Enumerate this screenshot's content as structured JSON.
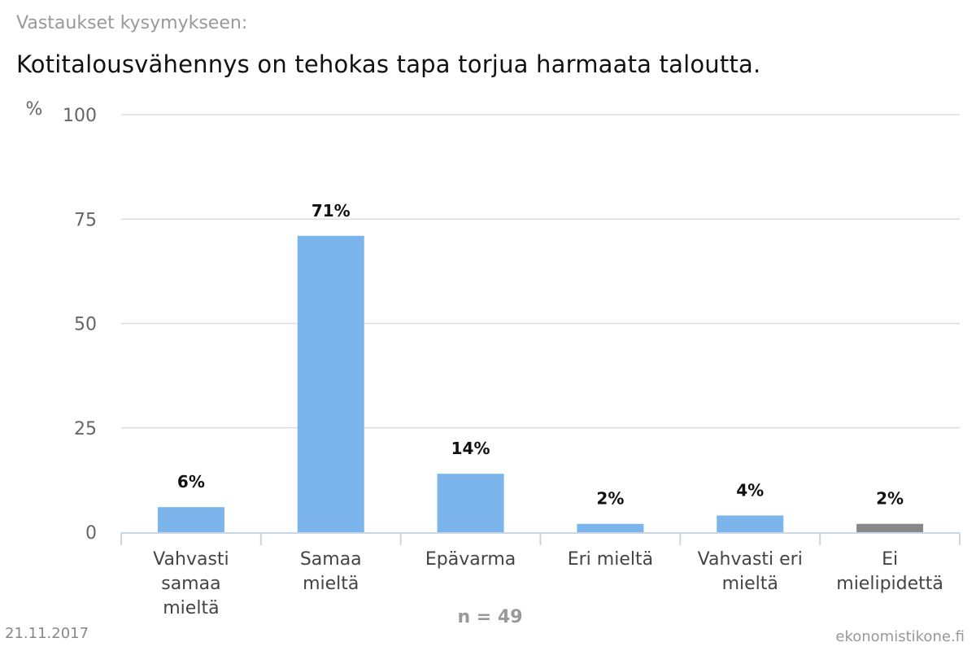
{
  "header": {
    "subtitle": "Vastaukset kysymykseen:",
    "title": "Kotitalousvähennys on tehokas tapa torjua harmaata taloutta."
  },
  "footer": {
    "date": "21.11.2017",
    "source": "ekonomistikone.fi",
    "n_label": "n = 49"
  },
  "chart_data": {
    "type": "bar",
    "categories": [
      [
        "Vahvasti",
        "samaa",
        "mieltä"
      ],
      [
        "Samaa",
        "mieltä"
      ],
      [
        "Epävarma"
      ],
      [
        "Eri mieltä"
      ],
      [
        "Vahvasti eri",
        "mieltä"
      ],
      [
        "Ei",
        "mielipidettä"
      ]
    ],
    "values": [
      6,
      71,
      14,
      2,
      4,
      2
    ],
    "value_labels": [
      "6%",
      "71%",
      "14%",
      "2%",
      "4%",
      "2%"
    ],
    "colors": [
      "#7cb5ec",
      "#7cb5ec",
      "#7cb5ec",
      "#7cb5ec",
      "#7cb5ec",
      "#888888"
    ],
    "ylabel": "%",
    "ylim": [
      0,
      100
    ],
    "yticks": [
      0,
      25,
      50,
      75,
      100
    ],
    "grid": true
  }
}
